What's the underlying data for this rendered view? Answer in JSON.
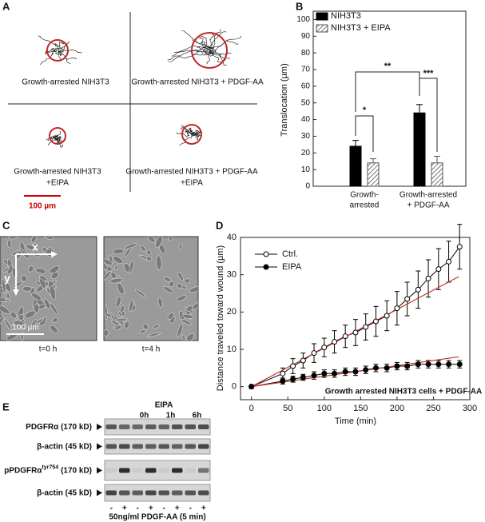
{
  "panel_labels": [
    "A",
    "B",
    "C",
    "D",
    "E"
  ],
  "panel_a": {
    "captions": [
      [
        "Growth-arrested NIH3T3"
      ],
      [
        "Growth-arrested NIH3T3 + PDGF-AA"
      ],
      [
        "Growth-arrested NIH3T3",
        "+EIPA"
      ],
      [
        "Growth-arrested NIH3T3 + PDGF-AA",
        "+EIPA"
      ]
    ],
    "scale_bar": "100 µm"
  },
  "panel_c": {
    "axis_x": "x",
    "axis_y": "y",
    "scale_bar": "100 µm",
    "captions": [
      "t=0 h",
      "t=4 h"
    ]
  },
  "panel_e": {
    "treatment": "EIPA",
    "times": [
      "0h",
      "1h",
      "6h"
    ],
    "rows": [
      {
        "label": "PDGFRα (170 kD)"
      },
      {
        "label": "β-actin (45 kD)"
      },
      {
        "label": "pPDGFRα",
        "superscript": "tyr754",
        "suffix": "(170 kD)"
      },
      {
        "label": "β-actin (45 kD)"
      }
    ],
    "lane_signs": [
      "-",
      "+",
      "-",
      "+",
      "-",
      "+",
      "-",
      "+"
    ],
    "footer": "50ng/ml PDGF-AA (5 min)"
  },
  "chart_data": [
    {
      "type": "bar",
      "y_label": "Translocation (µm)",
      "categories": [
        [
          "Growth-",
          "arrested"
        ],
        [
          "Growth-arrested",
          "+ PDGF-AA"
        ]
      ],
      "series": [
        {
          "name": "NIH3T3",
          "color": "#000000",
          "values": [
            24,
            44
          ],
          "errors": [
            3.5,
            5
          ]
        },
        {
          "name": "NIH3T3 + EIPA",
          "color": "#555555",
          "hatch": true,
          "values": [
            14,
            14
          ],
          "errors": [
            2.5,
            4
          ]
        }
      ],
      "ylim": [
        0,
        105
      ],
      "yticks": [
        0,
        10,
        20,
        30,
        40,
        50,
        60,
        70,
        80,
        90,
        100
      ],
      "legend": "top-left",
      "annotations": [
        "*",
        "**",
        "***"
      ]
    },
    {
      "type": "line",
      "x_label": "Time (min)",
      "y_label": "Distance traveled toward wound (µm)",
      "annotation": "Growth arrested NIH3T3 cells + PDGF-AA",
      "xlim": [
        -15,
        300
      ],
      "xticks": [
        0,
        50,
        100,
        150,
        200,
        250,
        300
      ],
      "ylim": [
        -3.5,
        40
      ],
      "yticks": [
        0,
        10,
        20,
        30,
        40
      ],
      "x": [
        0,
        43,
        57,
        71,
        86,
        100,
        114,
        129,
        143,
        157,
        171,
        186,
        200,
        214,
        229,
        243,
        257,
        271,
        286
      ],
      "series": [
        {
          "name": "Ctrl.",
          "color": "#000000",
          "marker": "open",
          "values": [
            0,
            3.5,
            5.5,
            7,
            9,
            10.5,
            12,
            13.5,
            14.5,
            16,
            17.5,
            19,
            21,
            23.5,
            26,
            29,
            31.5,
            33.5,
            37.5
          ],
          "errors": [
            0.5,
            1.5,
            2,
            2,
            2.5,
            2.5,
            3,
            3,
            3.5,
            3.5,
            4,
            4,
            4.5,
            4.5,
            5,
            5,
            5.5,
            5.5,
            6
          ]
        },
        {
          "name": "EIPA",
          "color": "#000000",
          "marker": "filled",
          "values": [
            0,
            1.5,
            2,
            2.5,
            3,
            3.5,
            3.5,
            4,
            4,
            4.5,
            5,
            5,
            5.5,
            5.5,
            6,
            6,
            6,
            6,
            6
          ],
          "errors": [
            0.3,
            0.8,
            0.8,
            0.8,
            1,
            1,
            1,
            1,
            1,
            1,
            1,
            1,
            1,
            1,
            1,
            1,
            1,
            1,
            1
          ]
        }
      ],
      "trend_lines": [
        {
          "color": "#c0392b",
          "x": [
            0,
            285
          ],
          "values": [
            0,
            29.5
          ]
        },
        {
          "color": "#c0392b",
          "x": [
            0,
            285
          ],
          "values": [
            0,
            8
          ]
        }
      ],
      "legend": "top-left"
    }
  ]
}
